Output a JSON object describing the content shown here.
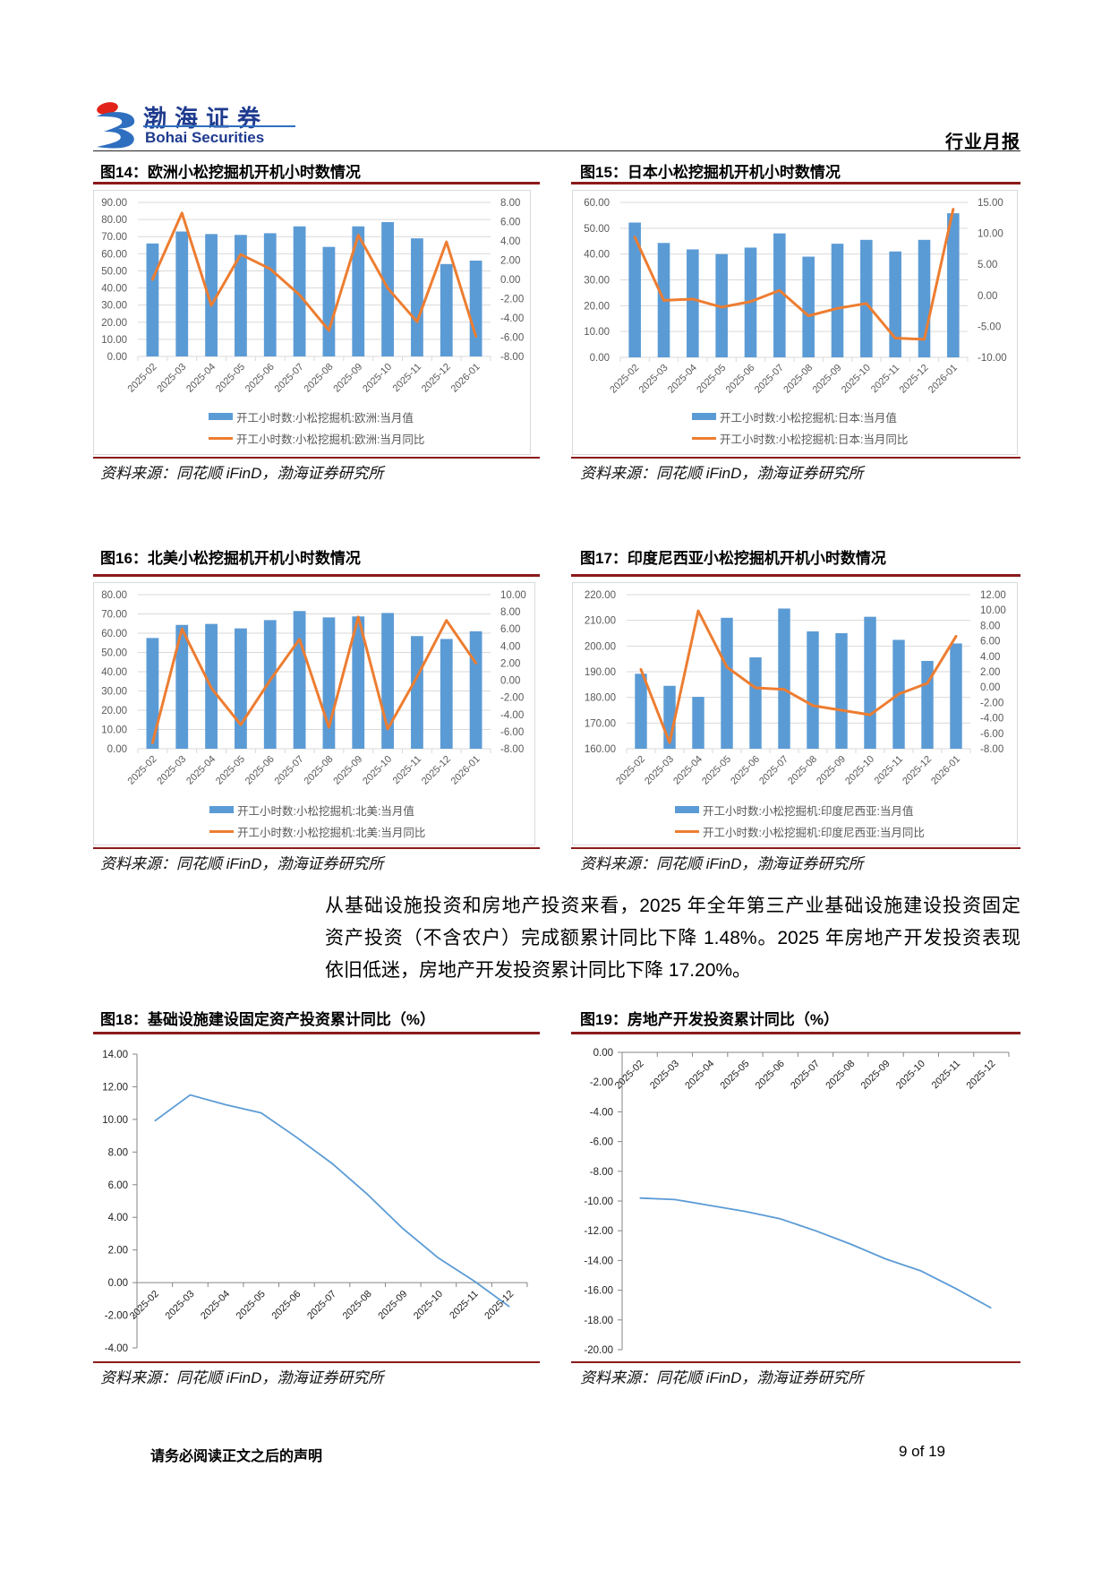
{
  "header": {
    "logo_cn": "渤海证券",
    "logo_en": "Bohai Securities",
    "doc_type": "行业月报"
  },
  "figures": [
    {
      "title": "图14：欧洲小松挖掘机开机小时数情况",
      "source": "资料来源：同花顺 iFinD，渤海证券研究所"
    },
    {
      "title": "图15：日本小松挖掘机开机小时数情况",
      "source": "资料来源：同花顺 iFinD，渤海证券研究所"
    },
    {
      "title": "图16：北美小松挖掘机开机小时数情况",
      "source": "资料来源：同花顺 iFinD，渤海证券研究所"
    },
    {
      "title": "图17：印度尼西亚小松挖掘机开机小时数情况",
      "source": "资料来源：同花顺 iFinD，渤海证券研究所"
    },
    {
      "title": "图18：基础设施建设固定资产投资累计同比（%）",
      "source": "资料来源：同花顺 iFinD，渤海证券研究所"
    },
    {
      "title": "图19：房地产开发投资累计同比（%）",
      "source": "资料来源：同花顺 iFinD，渤海证券研究所"
    }
  ],
  "body": {
    "paragraph_lines": [
      "从基础设施投资和房地产投资来看，2025 年全年第三产业基础设施建设投资固定",
      "资产投资（不含农户）完成额累计同比下降 1.48%。2025 年房地产开发投资表现",
      "依旧低迷，房地产开发投资累计同比下降 17.20%。"
    ]
  },
  "footer": {
    "disclaimer": "请务必阅读正文之后的声明",
    "page": "9 of 19"
  },
  "chart_data": [
    {
      "type": "bar_line",
      "title": "欧洲小松挖掘机开机小时数情况",
      "categories": [
        "2025-02",
        "2025-03",
        "2025-04",
        "2025-05",
        "2025-06",
        "2025-07",
        "2025-08",
        "2025-09",
        "2025-10",
        "2025-11",
        "2025-12",
        "2026-01"
      ],
      "series": [
        {
          "name": "开工小时数:小松挖掘机:欧洲:当月值",
          "kind": "bar",
          "axis": "left",
          "color": "#5b9bd5",
          "values": [
            66.0,
            73.0,
            71.5,
            71.0,
            72.0,
            76.0,
            64.0,
            76.0,
            78.5,
            69.0,
            54.0,
            56.0
          ]
        },
        {
          "name": "开工小时数:小松挖掘机:欧洲:当月同比",
          "kind": "line",
          "axis": "right",
          "color": "#ed7d31",
          "values": [
            0.0,
            6.9,
            -2.7,
            2.6,
            1.1,
            -1.6,
            -5.3,
            4.6,
            -0.9,
            -4.4,
            3.9,
            -5.9
          ]
        }
      ],
      "y_left": {
        "min": 0,
        "max": 90,
        "step": 10
      },
      "y_right": {
        "min": -8,
        "max": 8,
        "step": 2
      },
      "grid": true,
      "legend_position": "bottom"
    },
    {
      "type": "bar_line",
      "title": "日本小松挖掘机开机小时数情况",
      "categories": [
        "2025-02",
        "2025-03",
        "2025-04",
        "2025-05",
        "2025-06",
        "2025-07",
        "2025-08",
        "2025-09",
        "2025-10",
        "2025-11",
        "2025-12",
        "2026-01"
      ],
      "series": [
        {
          "name": "开工小时数:小松挖掘机:日本:当月值",
          "kind": "bar",
          "axis": "left",
          "color": "#5b9bd5",
          "values": [
            52.2,
            44.3,
            41.8,
            40.0,
            42.5,
            48.0,
            39.0,
            44.0,
            45.5,
            41.0,
            45.5,
            55.8
          ]
        },
        {
          "name": "开工小时数:小松挖掘机:日本:当月同比",
          "kind": "line",
          "axis": "right",
          "color": "#ed7d31",
          "values": [
            9.4,
            -0.8,
            -0.6,
            -1.9,
            -1.0,
            0.8,
            -3.3,
            -2.1,
            -1.3,
            -6.9,
            -7.1,
            13.9
          ]
        }
      ],
      "y_left": {
        "min": 0,
        "max": 60,
        "step": 10
      },
      "y_right": {
        "min": -10,
        "max": 15,
        "step": 5
      },
      "grid": true,
      "legend_position": "bottom"
    },
    {
      "type": "bar_line",
      "title": "北美小松挖掘机开机小时数情况",
      "categories": [
        "2025-02",
        "2025-03",
        "2025-04",
        "2025-05",
        "2025-06",
        "2025-07",
        "2025-08",
        "2025-09",
        "2025-10",
        "2025-11",
        "2025-12",
        "2026-01"
      ],
      "series": [
        {
          "name": "开工小时数:小松挖掘机:北美:当月值",
          "kind": "bar",
          "axis": "left",
          "color": "#5b9bd5",
          "values": [
            57.5,
            64.3,
            64.8,
            62.5,
            66.8,
            71.5,
            68.2,
            68.7,
            70.5,
            58.5,
            57.0,
            61.0
          ]
        },
        {
          "name": "开工小时数:小松挖掘机:北美:当月同比",
          "kind": "line",
          "axis": "right",
          "color": "#ed7d31",
          "values": [
            -7.3,
            6.0,
            -0.9,
            -5.2,
            0.0,
            4.8,
            -5.5,
            7.4,
            -5.7,
            0.4,
            7.0,
            2.0
          ]
        }
      ],
      "y_left": {
        "min": 0,
        "max": 80,
        "step": 10
      },
      "y_right": {
        "min": -8,
        "max": 10,
        "step": 2
      },
      "grid": true,
      "legend_position": "bottom"
    },
    {
      "type": "bar_line",
      "title": "印度尼西亚小松挖掘机开机小时数情况",
      "categories": [
        "2025-02",
        "2025-03",
        "2025-04",
        "2025-05",
        "2025-06",
        "2025-07",
        "2025-08",
        "2025-09",
        "2025-10",
        "2025-11",
        "2025-12",
        "2026-01"
      ],
      "series": [
        {
          "name": "开工小时数:小松挖掘机:印度尼西亚:当月值",
          "kind": "bar",
          "axis": "left",
          "color": "#5b9bd5",
          "values": [
            189.2,
            184.5,
            180.2,
            211.0,
            195.6,
            214.6,
            205.7,
            205.0,
            211.4,
            202.4,
            194.2,
            201.0
          ]
        },
        {
          "name": "开工小时数:小松挖掘机:印度尼西亚:当月同比",
          "kind": "line",
          "axis": "right",
          "color": "#ed7d31",
          "values": [
            2.3,
            -7.2,
            9.9,
            2.6,
            -0.1,
            -0.3,
            -2.4,
            -3.0,
            -3.6,
            -0.9,
            0.5,
            6.6
          ]
        }
      ],
      "y_left": {
        "min": 160,
        "max": 220,
        "step": 10
      },
      "y_right": {
        "min": -8,
        "max": 12,
        "step": 2
      },
      "grid": true,
      "legend_position": "bottom"
    },
    {
      "type": "line",
      "title": "基础设施建设固定资产投资累计同比（%）",
      "categories": [
        "2025-02",
        "2025-03",
        "2025-04",
        "2025-05",
        "2025-06",
        "2025-07",
        "2025-08",
        "2025-09",
        "2025-10",
        "2025-11",
        "2025-12"
      ],
      "series": [
        {
          "name": "基础设施建设固定资产投资累计同比",
          "kind": "line",
          "axis": "left",
          "color": "#5b9bd5",
          "values": [
            9.9,
            11.5,
            10.9,
            10.4,
            8.9,
            7.3,
            5.4,
            3.3,
            1.5,
            0.1,
            -1.48
          ]
        }
      ],
      "y_left": {
        "min": -4,
        "max": 14,
        "step": 2
      },
      "xlabel": "",
      "ylabel": "%",
      "grid": false,
      "legend_position": "none"
    },
    {
      "type": "line",
      "title": "房地产开发投资累计同比（%）",
      "categories": [
        "2025-02",
        "2025-03",
        "2025-04",
        "2025-05",
        "2025-06",
        "2025-07",
        "2025-08",
        "2025-09",
        "2025-10",
        "2025-11",
        "2025-12"
      ],
      "series": [
        {
          "name": "房地产开发投资累计同比",
          "kind": "line",
          "axis": "left",
          "color": "#5b9bd5",
          "values": [
            -9.8,
            -9.9,
            -10.3,
            -10.7,
            -11.2,
            -12.0,
            -12.9,
            -13.9,
            -14.7,
            -15.9,
            -17.2
          ]
        }
      ],
      "y_left": {
        "min": -20,
        "max": 0,
        "step": 2
      },
      "xlabel": "",
      "ylabel": "%",
      "grid": false,
      "legend_position": "none"
    }
  ]
}
